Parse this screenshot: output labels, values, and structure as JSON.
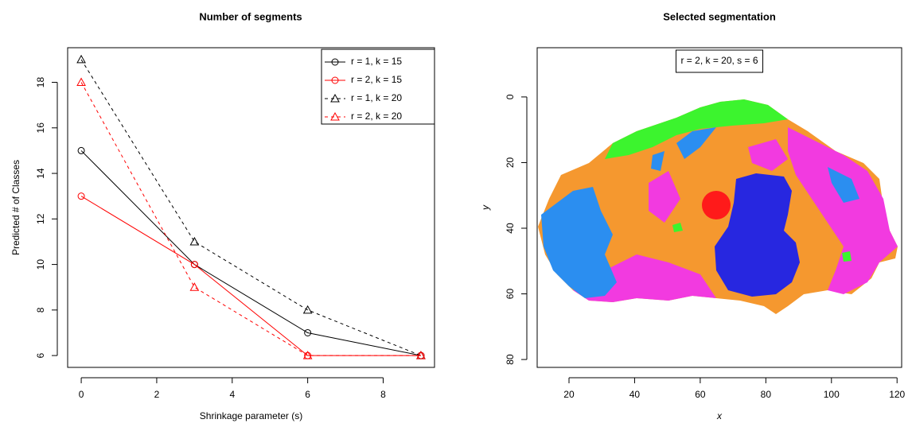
{
  "chart_data": [
    {
      "type": "line",
      "title": "Number of segments",
      "xlabel": "Shrinkage parameter (s)",
      "ylabel": "Predicted # of Classes",
      "x": [
        0,
        3,
        6,
        9
      ],
      "series": [
        {
          "name": "r = 1, k = 15",
          "color": "#000000",
          "linestyle": "solid",
          "marker": "circle",
          "values": [
            15,
            10,
            7,
            6
          ]
        },
        {
          "name": "r = 2, k = 15",
          "color": "#ff0000",
          "linestyle": "solid",
          "marker": "circle",
          "values": [
            13,
            10,
            6,
            6
          ]
        },
        {
          "name": "r = 1, k = 20",
          "color": "#000000",
          "linestyle": "dashed",
          "marker": "triangle",
          "values": [
            19,
            11,
            8,
            6
          ]
        },
        {
          "name": "r = 2, k = 20",
          "color": "#ff0000",
          "linestyle": "dashed",
          "marker": "triangle",
          "values": [
            18,
            9,
            6,
            6
          ]
        }
      ],
      "xlim": [
        -0.36,
        9.36
      ],
      "ylim": [
        5.48,
        19.52
      ],
      "xticks": [
        0,
        2,
        4,
        6,
        8
      ],
      "yticks": [
        6,
        8,
        10,
        12,
        14,
        16,
        18
      ],
      "legend": "top-right"
    },
    {
      "type": "image",
      "title": "Selected segmentation",
      "xlabel": "x",
      "ylabel": "y",
      "annotation": "r = 2, k = 20, s = 6",
      "xlim": [
        10.3,
        121.4
      ],
      "ylim": [
        -15,
        82.4
      ],
      "y_reversed": true,
      "xticks": [
        20,
        40,
        60,
        80,
        100,
        120
      ],
      "yticks": [
        0,
        20,
        40,
        60,
        80
      ]
    }
  ]
}
